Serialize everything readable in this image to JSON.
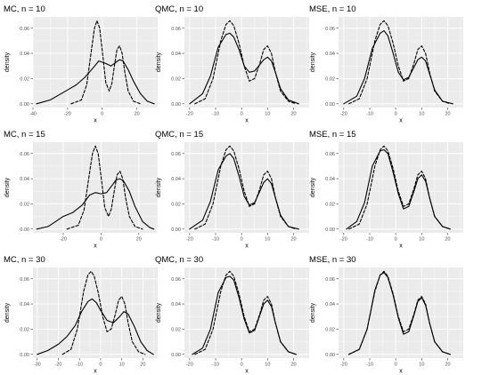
{
  "figure": {
    "panel_bg": "#ebebeb",
    "grid_color": "#ffffff",
    "line_color": "#000000"
  },
  "chart_data": [
    {
      "type": "line",
      "title": "MC, n = 10",
      "xlabel": "x",
      "ylabel": "density",
      "xlim": [
        -40,
        32
      ],
      "ylim": [
        -0.003,
        0.069
      ],
      "xticks": [
        -40,
        -20,
        0,
        20
      ],
      "yticks": [
        0.0,
        0.02,
        0.04,
        0.06
      ],
      "xtick_labels": [
        "-40",
        "-20",
        "0",
        "20"
      ],
      "ytick_labels": [
        "0.00",
        "0.02",
        "0.04",
        "0.06"
      ],
      "grid": true,
      "legend": "none",
      "series": [
        {
          "style": "dashed",
          "x": [
            -18,
            -12,
            -9,
            -6,
            -4.5,
            -3,
            -1.5,
            0,
            2,
            4,
            5.5,
            7,
            8.5,
            10,
            11.5,
            13,
            15,
            18,
            22
          ],
          "y": [
            0.0,
            0.003,
            0.015,
            0.045,
            0.06,
            0.066,
            0.06,
            0.042,
            0.017,
            0.01,
            0.016,
            0.03,
            0.043,
            0.046,
            0.04,
            0.025,
            0.01,
            0.002,
            0.0
          ]
        },
        {
          "style": "solid",
          "x": [
            -38,
            -30,
            -25,
            -20,
            -15,
            -10,
            -5,
            -2,
            2,
            5,
            8,
            10,
            12,
            15,
            18,
            22,
            26,
            30
          ],
          "y": [
            0.0,
            0.003,
            0.007,
            0.011,
            0.015,
            0.021,
            0.029,
            0.034,
            0.032,
            0.03,
            0.033,
            0.035,
            0.034,
            0.027,
            0.018,
            0.008,
            0.002,
            0.0
          ]
        }
      ]
    },
    {
      "type": "line",
      "title": "QMC, n = 10",
      "xlabel": "x",
      "ylabel": "density",
      "xlim": [
        -22,
        26
      ],
      "ylim": [
        -0.003,
        0.069
      ],
      "xticks": [
        -20,
        -10,
        0,
        10,
        20
      ],
      "yticks": [
        0.0,
        0.02,
        0.04,
        0.06
      ],
      "xtick_labels": [
        "-20",
        "-10",
        "0",
        "10",
        "20"
      ],
      "ytick_labels": [
        "0.00",
        "0.02",
        "0.04",
        "0.06"
      ],
      "grid": true,
      "legend": "none",
      "series": [
        {
          "style": "dashed",
          "x": [
            -18,
            -14,
            -11,
            -8,
            -6,
            -4.5,
            -3,
            -1,
            1,
            3,
            5,
            7,
            8.5,
            10,
            11.5,
            13,
            15,
            18,
            21
          ],
          "y": [
            0.0,
            0.004,
            0.02,
            0.05,
            0.063,
            0.066,
            0.062,
            0.048,
            0.03,
            0.018,
            0.02,
            0.032,
            0.043,
            0.046,
            0.04,
            0.025,
            0.01,
            0.002,
            0.0
          ]
        },
        {
          "style": "solid",
          "x": [
            -20,
            -15,
            -12,
            -9,
            -6,
            -4.5,
            -3,
            -1,
            1,
            3,
            5,
            7,
            8.5,
            10,
            11.5,
            13,
            15,
            18,
            22
          ],
          "y": [
            0.0,
            0.008,
            0.022,
            0.045,
            0.055,
            0.056,
            0.053,
            0.043,
            0.03,
            0.025,
            0.026,
            0.031,
            0.035,
            0.037,
            0.034,
            0.025,
            0.012,
            0.003,
            0.0
          ]
        }
      ]
    },
    {
      "type": "line",
      "title": "MSE, n = 10",
      "xlabel": "x",
      "ylabel": "density",
      "xlim": [
        -22,
        26
      ],
      "ylim": [
        -0.003,
        0.069
      ],
      "xticks": [
        -20,
        -10,
        0,
        10,
        20
      ],
      "yticks": [
        0.0,
        0.02,
        0.04,
        0.06
      ],
      "xtick_labels": [
        "-20",
        "-10",
        "0",
        "10",
        "20"
      ],
      "ytick_labels": [
        "0.00",
        "0.02",
        "0.04",
        "0.06"
      ],
      "grid": true,
      "legend": "none",
      "series": [
        {
          "style": "dashed",
          "x": [
            -18,
            -14,
            -11,
            -8,
            -6,
            -4.5,
            -3,
            -1,
            1,
            3,
            5,
            7,
            8.5,
            10,
            11.5,
            13,
            15,
            18,
            21
          ],
          "y": [
            0.0,
            0.004,
            0.02,
            0.05,
            0.063,
            0.066,
            0.062,
            0.048,
            0.03,
            0.018,
            0.02,
            0.032,
            0.043,
            0.046,
            0.04,
            0.025,
            0.01,
            0.002,
            0.0
          ]
        },
        {
          "style": "solid",
          "x": [
            -20,
            -15,
            -12,
            -9,
            -6,
            -4.5,
            -3,
            -1,
            1,
            3,
            5,
            7,
            8.5,
            10,
            11.5,
            13,
            15,
            18,
            22
          ],
          "y": [
            0.0,
            0.006,
            0.02,
            0.044,
            0.056,
            0.058,
            0.054,
            0.04,
            0.025,
            0.019,
            0.021,
            0.029,
            0.035,
            0.037,
            0.034,
            0.024,
            0.011,
            0.002,
            0.0
          ]
        }
      ]
    },
    {
      "type": "line",
      "title": "MC, n = 15",
      "xlabel": "x",
      "ylabel": "density",
      "xlim": [
        -36,
        30
      ],
      "ylim": [
        -0.003,
        0.069
      ],
      "xticks": [
        -20,
        0,
        20
      ],
      "yticks": [
        0.0,
        0.02,
        0.04,
        0.06
      ],
      "xtick_labels": [
        "-20",
        "0",
        "20"
      ],
      "ytick_labels": [
        "0.00",
        "0.02",
        "0.04",
        "0.06"
      ],
      "grid": true,
      "legend": "none",
      "series": [
        {
          "style": "dashed",
          "x": [
            -18,
            -12,
            -9,
            -6,
            -4.5,
            -3,
            -1.5,
            0,
            2,
            4,
            5.5,
            7,
            8.5,
            10,
            11.5,
            13,
            15,
            18,
            22
          ],
          "y": [
            0.0,
            0.003,
            0.015,
            0.045,
            0.06,
            0.066,
            0.06,
            0.042,
            0.017,
            0.01,
            0.016,
            0.03,
            0.043,
            0.046,
            0.04,
            0.025,
            0.01,
            0.002,
            0.0
          ]
        },
        {
          "style": "solid",
          "x": [
            -34,
            -28,
            -24,
            -20,
            -15,
            -10,
            -6,
            -3,
            0,
            3,
            6,
            8,
            10,
            12,
            15,
            18,
            22,
            26,
            28
          ],
          "y": [
            0.0,
            0.002,
            0.006,
            0.01,
            0.013,
            0.019,
            0.027,
            0.029,
            0.028,
            0.029,
            0.035,
            0.039,
            0.04,
            0.038,
            0.03,
            0.018,
            0.006,
            0.001,
            0.0
          ]
        }
      ]
    },
    {
      "type": "line",
      "title": "QMC, n = 15",
      "xlabel": "x",
      "ylabel": "density",
      "xlim": [
        -22,
        26
      ],
      "ylim": [
        -0.003,
        0.069
      ],
      "xticks": [
        -20,
        -10,
        0,
        10,
        20
      ],
      "yticks": [
        0.0,
        0.02,
        0.04,
        0.06
      ],
      "xtick_labels": [
        "-20",
        "-10",
        "0",
        "10",
        "20"
      ],
      "ytick_labels": [
        "0.00",
        "0.02",
        "0.04",
        "0.06"
      ],
      "grid": true,
      "legend": "none",
      "series": [
        {
          "style": "dashed",
          "x": [
            -18,
            -14,
            -11,
            -8,
            -6,
            -4.5,
            -3,
            -1,
            1,
            3,
            5,
            7,
            8.5,
            10,
            11.5,
            13,
            15,
            18,
            21
          ],
          "y": [
            0.0,
            0.004,
            0.02,
            0.05,
            0.063,
            0.066,
            0.062,
            0.048,
            0.03,
            0.018,
            0.02,
            0.032,
            0.043,
            0.046,
            0.04,
            0.025,
            0.01,
            0.002,
            0.0
          ]
        },
        {
          "style": "solid",
          "x": [
            -20,
            -15,
            -12,
            -9,
            -6,
            -4.5,
            -3,
            -1,
            1,
            3,
            5,
            7,
            8.5,
            10,
            11.5,
            13,
            15,
            18,
            22
          ],
          "y": [
            0.0,
            0.007,
            0.022,
            0.047,
            0.058,
            0.06,
            0.056,
            0.042,
            0.026,
            0.019,
            0.021,
            0.03,
            0.037,
            0.04,
            0.036,
            0.025,
            0.011,
            0.002,
            0.0
          ]
        }
      ]
    },
    {
      "type": "line",
      "title": "MSE, n = 15",
      "xlabel": "x",
      "ylabel": "density",
      "xlim": [
        -22,
        26
      ],
      "ylim": [
        -0.003,
        0.069
      ],
      "xticks": [
        -20,
        -10,
        0,
        10,
        20
      ],
      "yticks": [
        0.0,
        0.02,
        0.04,
        0.06
      ],
      "xtick_labels": [
        "-20",
        "-10",
        "0",
        "10",
        "20"
      ],
      "ytick_labels": [
        "0.00",
        "0.02",
        "0.04",
        "0.06"
      ],
      "grid": true,
      "legend": "none",
      "series": [
        {
          "style": "dashed",
          "x": [
            -18,
            -14,
            -11,
            -8,
            -6,
            -4.5,
            -3,
            -1,
            1,
            3,
            5,
            7,
            8.5,
            10,
            11.5,
            13,
            15,
            18,
            21
          ],
          "y": [
            0.0,
            0.004,
            0.02,
            0.05,
            0.063,
            0.066,
            0.062,
            0.048,
            0.03,
            0.018,
            0.02,
            0.032,
            0.043,
            0.046,
            0.04,
            0.025,
            0.01,
            0.002,
            0.0
          ]
        },
        {
          "style": "solid",
          "x": [
            -19,
            -15,
            -12,
            -9,
            -6,
            -4.5,
            -3,
            -1,
            1,
            3,
            5,
            7,
            8.5,
            10,
            11.5,
            13,
            15,
            18,
            21
          ],
          "y": [
            0.0,
            0.006,
            0.021,
            0.05,
            0.062,
            0.063,
            0.06,
            0.045,
            0.028,
            0.016,
            0.018,
            0.03,
            0.04,
            0.043,
            0.038,
            0.025,
            0.01,
            0.002,
            0.0
          ]
        }
      ]
    },
    {
      "type": "line",
      "title": "MC, n = 30",
      "xlabel": "x",
      "ylabel": "density",
      "xlim": [
        -32,
        27
      ],
      "ylim": [
        -0.003,
        0.069
      ],
      "xticks": [
        -30,
        -20,
        -10,
        0,
        10,
        20
      ],
      "yticks": [
        0.0,
        0.02,
        0.04,
        0.06
      ],
      "xtick_labels": [
        "-30",
        "-20",
        "-10",
        "0",
        "10",
        "20"
      ],
      "ytick_labels": [
        "0.00",
        "0.02",
        "0.04",
        "0.06"
      ],
      "grid": true,
      "legend": "none",
      "series": [
        {
          "style": "dashed",
          "x": [
            -18,
            -14,
            -11,
            -8,
            -6,
            -4.5,
            -3,
            -1,
            1,
            3,
            5,
            7,
            8.5,
            10,
            11.5,
            13,
            15,
            18,
            21
          ],
          "y": [
            0.0,
            0.004,
            0.02,
            0.05,
            0.063,
            0.066,
            0.062,
            0.048,
            0.03,
            0.018,
            0.02,
            0.032,
            0.043,
            0.046,
            0.04,
            0.025,
            0.01,
            0.002,
            0.0
          ]
        },
        {
          "style": "solid",
          "x": [
            -30,
            -25,
            -20,
            -16,
            -12,
            -9,
            -6,
            -4,
            -2,
            0,
            3,
            6,
            9,
            11,
            13,
            16,
            19,
            22,
            25
          ],
          "y": [
            0.0,
            0.003,
            0.008,
            0.014,
            0.023,
            0.034,
            0.042,
            0.044,
            0.041,
            0.035,
            0.027,
            0.025,
            0.03,
            0.034,
            0.032,
            0.022,
            0.01,
            0.003,
            0.0
          ]
        }
      ]
    },
    {
      "type": "line",
      "title": "QMC, n = 30",
      "xlabel": "x",
      "ylabel": "density",
      "xlim": [
        -22,
        26
      ],
      "ylim": [
        -0.003,
        0.069
      ],
      "xticks": [
        -20,
        -10,
        0,
        10,
        20
      ],
      "yticks": [
        0.0,
        0.02,
        0.04,
        0.06
      ],
      "xtick_labels": [
        "-20",
        "-10",
        "0",
        "10",
        "20"
      ],
      "ytick_labels": [
        "0.00",
        "0.02",
        "0.04",
        "0.06"
      ],
      "grid": true,
      "legend": "none",
      "series": [
        {
          "style": "dashed",
          "x": [
            -18,
            -14,
            -11,
            -8,
            -6,
            -4.5,
            -3,
            -1,
            1,
            3,
            5,
            7,
            8.5,
            10,
            11.5,
            13,
            15,
            18,
            21
          ],
          "y": [
            0.0,
            0.004,
            0.02,
            0.05,
            0.063,
            0.066,
            0.062,
            0.048,
            0.03,
            0.018,
            0.02,
            0.032,
            0.043,
            0.046,
            0.04,
            0.025,
            0.01,
            0.002,
            0.0
          ]
        },
        {
          "style": "solid",
          "x": [
            -19,
            -15,
            -12,
            -9,
            -6,
            -4.5,
            -3,
            -1,
            1,
            3,
            5,
            7,
            8.5,
            10,
            11.5,
            13,
            15,
            18,
            21
          ],
          "y": [
            0.0,
            0.005,
            0.02,
            0.049,
            0.061,
            0.062,
            0.059,
            0.045,
            0.028,
            0.017,
            0.019,
            0.031,
            0.04,
            0.043,
            0.038,
            0.025,
            0.01,
            0.002,
            0.0
          ]
        }
      ]
    },
    {
      "type": "line",
      "title": "MSE, n = 30",
      "xlabel": "x",
      "ylabel": "density",
      "xlim": [
        -22,
        26
      ],
      "ylim": [
        -0.003,
        0.069
      ],
      "xticks": [
        -20,
        -10,
        0,
        10,
        20
      ],
      "yticks": [
        0.0,
        0.02,
        0.04,
        0.06
      ],
      "xtick_labels": [
        "-20",
        "-10",
        "0",
        "10",
        "20"
      ],
      "ytick_labels": [
        "0.00",
        "0.02",
        "0.04",
        "0.06"
      ],
      "grid": true,
      "legend": "none",
      "series": [
        {
          "style": "dashed",
          "x": [
            -18,
            -14,
            -11,
            -8,
            -6,
            -4.5,
            -3,
            -1,
            1,
            3,
            5,
            7,
            8.5,
            10,
            11.5,
            13,
            15,
            18,
            21
          ],
          "y": [
            0.0,
            0.004,
            0.02,
            0.05,
            0.063,
            0.066,
            0.062,
            0.048,
            0.03,
            0.018,
            0.02,
            0.032,
            0.043,
            0.046,
            0.04,
            0.025,
            0.01,
            0.002,
            0.0
          ]
        },
        {
          "style": "solid",
          "x": [
            -18,
            -14,
            -11,
            -8,
            -6,
            -4.5,
            -3,
            -1,
            1,
            3,
            5,
            7,
            8.5,
            10,
            11.5,
            13,
            15,
            18,
            21
          ],
          "y": [
            0.0,
            0.004,
            0.02,
            0.051,
            0.063,
            0.065,
            0.061,
            0.047,
            0.029,
            0.016,
            0.018,
            0.031,
            0.042,
            0.045,
            0.039,
            0.025,
            0.01,
            0.002,
            0.0
          ]
        }
      ]
    }
  ]
}
